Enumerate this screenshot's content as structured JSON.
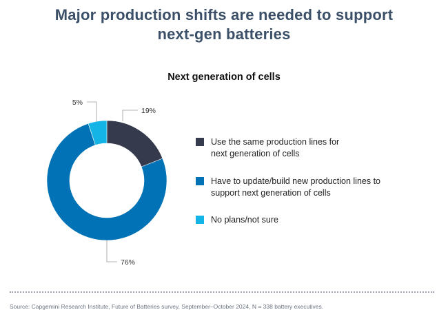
{
  "header": {
    "title_line1": "Major production shifts are needed to support",
    "title_line2": "next-gen batteries"
  },
  "chart_data": {
    "type": "pie",
    "variant": "donut",
    "title": "Next generation of cells",
    "categories": [
      "Use the same production lines for next generation of cells",
      "Have to update/build new production lines to support next generation of cells",
      "No plans/not sure"
    ],
    "values": [
      19,
      76,
      5
    ],
    "value_labels": [
      "19%",
      "76%",
      "5%"
    ],
    "colors": [
      "#353b4d",
      "#0072b5",
      "#14b4e6"
    ],
    "legend_position": "right"
  },
  "legend": {
    "items": [
      {
        "line1": "Use the same production lines for",
        "line2": "next generation of cells"
      },
      {
        "line1": "Have to update/build new production lines to",
        "line2": "support next generation of cells"
      },
      {
        "line1": "No plans/not sure",
        "line2": ""
      }
    ]
  },
  "footer": {
    "source": "Source: Capgemini Research Institute, Future of Batteries survey, September–October 2024, N = 338 battery executives."
  }
}
